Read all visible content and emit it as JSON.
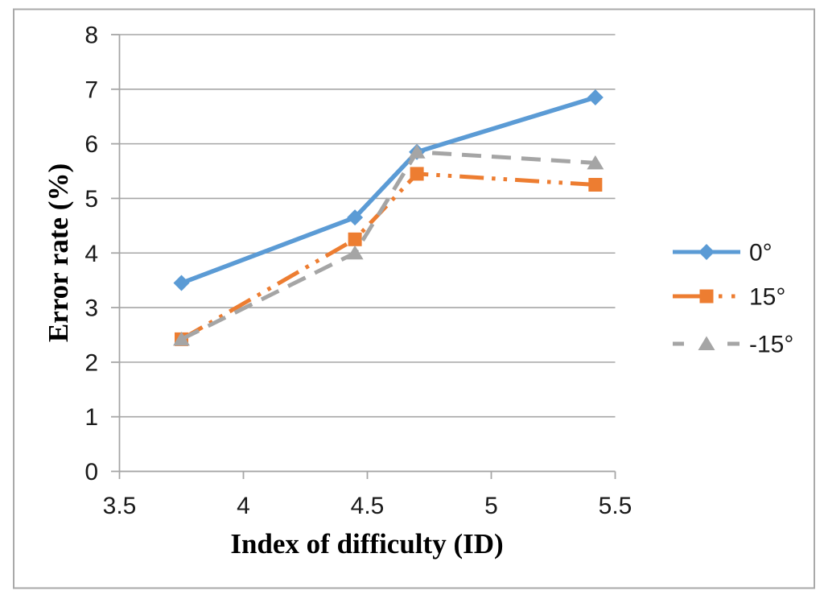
{
  "chart_data": {
    "type": "line",
    "title": "",
    "xlabel": "Index of difficulty (ID)",
    "ylabel": "Error rate (%)",
    "x": [
      3.75,
      4.45,
      4.7,
      5.42
    ],
    "series": [
      {
        "name": "0°",
        "color": "#5B9BD5",
        "marker": "diamond",
        "line_style": "solid",
        "values": [
          3.45,
          4.65,
          5.85,
          6.85
        ]
      },
      {
        "name": "15°",
        "color": "#ED7D31",
        "marker": "square",
        "line_style": "long-dash-dot-dot",
        "values": [
          2.42,
          4.25,
          5.45,
          5.25
        ]
      },
      {
        "name": "-15°",
        "color": "#A5A5A5",
        "marker": "triangle",
        "line_style": "dashed",
        "values": [
          2.42,
          4.0,
          5.85,
          5.65
        ]
      }
    ],
    "xlim": [
      3.5,
      5.5
    ],
    "ylim": [
      0,
      8
    ],
    "xticks": [
      3.5,
      4,
      4.5,
      5,
      5.5
    ],
    "xtick_labels": [
      "3.5",
      "4",
      "4.5",
      "5",
      "5.5"
    ],
    "yticks": [
      0,
      1,
      2,
      3,
      4,
      5,
      6,
      7,
      8
    ],
    "ytick_labels": [
      "0",
      "1",
      "2",
      "3",
      "4",
      "5",
      "6",
      "7",
      "8"
    ],
    "grid": "horizontal",
    "legend_position": "right",
    "legend_labels": [
      "0°",
      "15°",
      "-15°"
    ],
    "colors": {
      "axis": "#A6A6A6",
      "gridline": "#A6A6A6",
      "tick_text": "#1A1A1A",
      "border": "#A9A9A9",
      "background": "#FFFFFF"
    }
  }
}
